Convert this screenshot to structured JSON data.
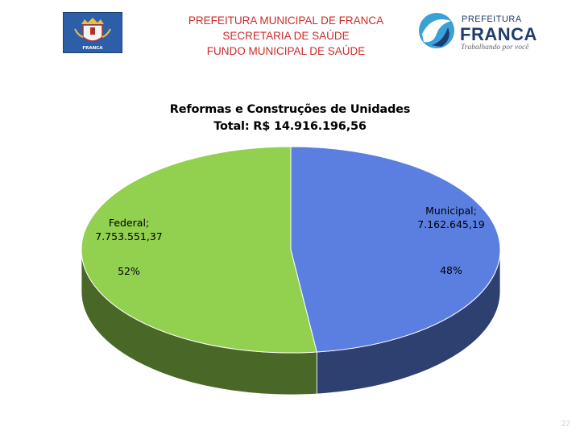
{
  "header": {
    "line1": "PREFEITURA MUNICIPAL DE FRANCA",
    "line2": "SECRETARIA DE SAÚDE",
    "line3": "FUNDO MUNICIPAL DE SAÚDE"
  },
  "crest": {
    "label": "FRANCA",
    "icon": "coat-of-arms-icon"
  },
  "logo": {
    "top": "PREFEITURA",
    "main": "FRANCA",
    "slogan": "Trabalhando por você",
    "icon": "swoosh-logo-icon"
  },
  "colors": {
    "header_text": "#cc2a2a",
    "federal": "#92d050",
    "municipal": "#5b7fe0",
    "logo_navy": "#1f3c6e"
  },
  "chart_data": {
    "type": "pie",
    "style": "3d",
    "title": "Reformas e Construções de Unidades",
    "subtitle": "Total: R$ 14.916.196,56",
    "legend": "none",
    "slices": [
      {
        "label": "Municipal;",
        "value_text": "7.162.645,19",
        "value": 7162645.19,
        "percent": 48,
        "percent_text": "48%",
        "color": "#5b7fe0"
      },
      {
        "label": "Federal;",
        "value_text": "7.753.551,37",
        "value": 7753551.37,
        "percent": 52,
        "percent_text": "52%",
        "color": "#92d050"
      }
    ]
  },
  "page_number": "27"
}
